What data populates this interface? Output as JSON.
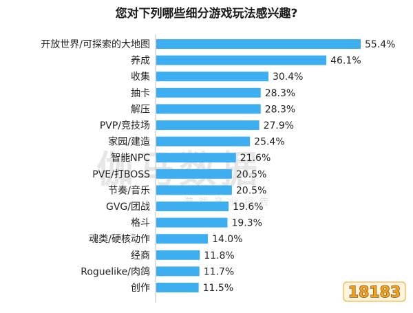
{
  "chart_data": {
    "type": "bar",
    "orientation": "horizontal",
    "title": "您对下列哪些细分游戏玩法感兴趣?",
    "categories": [
      "开放世界/可探索的大地图",
      "养成",
      "收集",
      "抽卡",
      "解压",
      "PVP/竞技场",
      "家园/建造",
      "智能NPC",
      "PVE/打BOSS",
      "节奏/音乐",
      "GVG/团战",
      "格斗",
      "魂类/硬核动作",
      "经商",
      "Roguelike/肉鸽",
      "创作"
    ],
    "values": [
      55.4,
      46.1,
      30.4,
      28.3,
      28.3,
      27.9,
      25.4,
      21.6,
      20.5,
      20.5,
      19.6,
      19.3,
      14.0,
      11.8,
      11.7,
      11.5
    ],
    "value_labels": [
      "55.4%",
      "46.1%",
      "30.4%",
      "28.3%",
      "28.3%",
      "27.9%",
      "25.4%",
      "21.6%",
      "20.5%",
      "20.5%",
      "19.6%",
      "19.3%",
      "14.0%",
      "11.8%",
      "11.7%",
      "11.5%"
    ],
    "xlim": [
      0,
      55.4
    ],
    "grid": false,
    "bar_color": "#3daef0",
    "axis_color": "#bdbdbd"
  },
  "watermark": {
    "big": "伽马数据",
    "small": "· 游戏产业报告"
  },
  "logo": {
    "text": "18183",
    "color": "#f0a31c"
  }
}
